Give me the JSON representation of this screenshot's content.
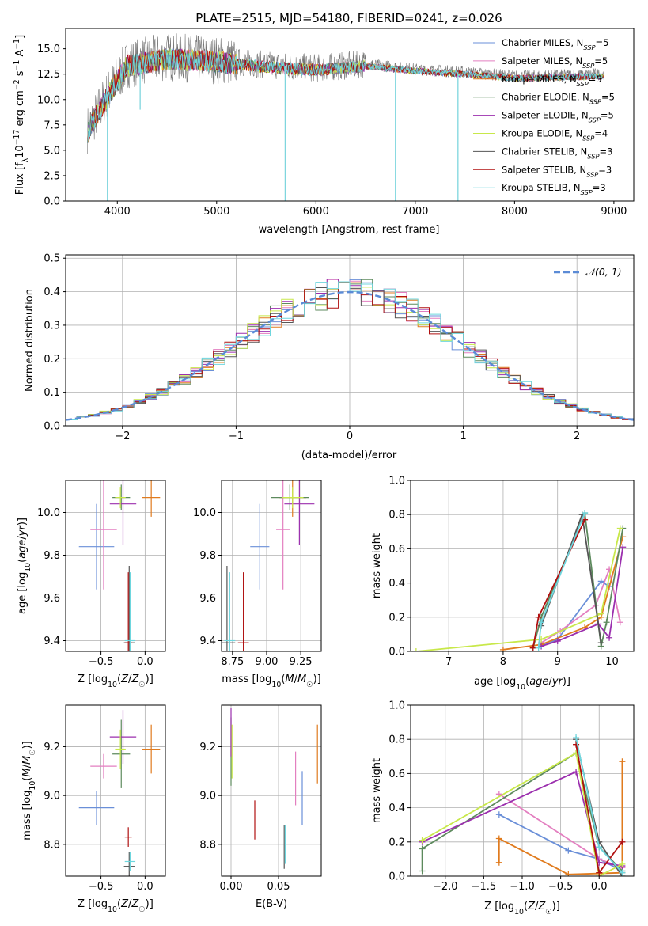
{
  "figure_title": "PLATE=2515, MJD=54180, FIBERID=0241, z=0.026",
  "series_styles": [
    {
      "name": "Chabrier MILES",
      "nssp": "5",
      "color": "#6a8fd8"
    },
    {
      "name": "Salpeter MILES",
      "nssp": "5",
      "color": "#e37fc0"
    },
    {
      "name": "Kroupa MILES",
      "nssp": "5",
      "color": "#e07b1e"
    },
    {
      "name": "Chabrier ELODIE",
      "nssp": "5",
      "color": "#5d8a5d"
    },
    {
      "name": "Salpeter ELODIE",
      "nssp": "5",
      "color": "#9b2fae"
    },
    {
      "name": "Kroupa ELODIE",
      "nssp": "4",
      "color": "#c8e84a"
    },
    {
      "name": "Chabrier STELIB",
      "nssp": "3",
      "color": "#555555"
    },
    {
      "name": "Salpeter STELIB",
      "nssp": "3",
      "color": "#b01010"
    },
    {
      "name": "Kroupa STELIB",
      "nssp": "3",
      "color": "#6ed6de"
    }
  ],
  "chart_data": [
    {
      "id": "spectrum",
      "type": "line",
      "title": "PLATE=2515, MJD=54180, FIBERID=0241, z=0.026",
      "xlabel": "wavelength [Angstrom, rest frame]",
      "ylabel": "Flux [f_λ 10^-17 erg cm^-2 s^-1 A^-1]",
      "xlim": [
        3480,
        9200
      ],
      "ylim": [
        0,
        17
      ],
      "xticks": [
        4000,
        5000,
        6000,
        7000,
        8000,
        9000
      ],
      "yticks": [
        0.0,
        2.5,
        5.0,
        7.5,
        10.0,
        12.5,
        15.0
      ],
      "continuum": {
        "x": [
          3700,
          3900,
          4100,
          4500,
          5000,
          5500,
          6000,
          6500,
          7000,
          7500,
          8000,
          8500,
          8900
        ],
        "y": [
          7.0,
          10.5,
          13.5,
          14.2,
          13.9,
          13.4,
          13.1,
          13.5,
          13.0,
          12.7,
          12.3,
          12.4,
          12.5
        ]
      },
      "dips": [
        {
          "x": 3900,
          "y": 0.0
        },
        {
          "x": 4230,
          "y": 9.0
        },
        {
          "x": 5690,
          "y": 0.0
        },
        {
          "x": 6800,
          "y": 0.0
        },
        {
          "x": 7430,
          "y": 0.0
        }
      ],
      "legend": "upper right"
    },
    {
      "id": "residuals",
      "type": "line",
      "xlabel": "(data-model)/error",
      "ylabel": "Normed distribution",
      "xlim": [
        -2.5,
        2.5
      ],
      "ylim": [
        0,
        0.51
      ],
      "xticks": [
        -2,
        -1,
        0,
        1,
        2
      ],
      "yticks": [
        0.0,
        0.1,
        0.2,
        0.3,
        0.4,
        0.5
      ],
      "grid": true,
      "reference_curve": {
        "name": "𝒩(0, 1)",
        "function": "normal pdf, mean 0, sigma 1",
        "color": "#5b8bd6"
      },
      "legend": "upper right"
    },
    {
      "id": "age_vs_Z",
      "type": "scatter",
      "xlabel": "Z [log10(Z/Z☉)]",
      "ylabel": "age [log10(age/yr)]",
      "xlim": [
        -0.9,
        0.23
      ],
      "ylim": [
        9.35,
        10.15
      ],
      "xticks": [
        -0.5,
        0.0
      ],
      "yticks": [
        9.4,
        9.6,
        9.8,
        10.0
      ],
      "grid": true,
      "points": [
        {
          "series": "Chabrier MILES",
          "x": -0.55,
          "xerr": 0.2,
          "y": 9.84,
          "yerr": 0.2
        },
        {
          "series": "Salpeter MILES",
          "x": -0.47,
          "xerr": 0.15,
          "y": 9.92,
          "yerr": 0.28
        },
        {
          "series": "Kroupa MILES",
          "x": 0.07,
          "xerr": 0.1,
          "y": 10.07,
          "yerr": 0.09
        },
        {
          "series": "Chabrier ELODIE",
          "x": -0.27,
          "xerr": 0.1,
          "y": 10.07,
          "yerr": 0.06
        },
        {
          "series": "Salpeter ELODIE",
          "x": -0.25,
          "xerr": 0.15,
          "y": 10.04,
          "yerr": 0.19
        },
        {
          "series": "Kroupa ELODIE",
          "x": -0.28,
          "xerr": 0.06,
          "y": 10.07,
          "yerr": 0.05
        },
        {
          "series": "Chabrier STELIB",
          "x": -0.18,
          "xerr": 0.06,
          "y": 9.39,
          "yerr": 0.36
        },
        {
          "series": "Salpeter STELIB",
          "x": -0.19,
          "xerr": 0.04,
          "y": 9.39,
          "yerr": 0.33
        },
        {
          "series": "Kroupa STELIB",
          "x": -0.17,
          "xerr": 0.06,
          "y": 9.4,
          "yerr": 0.32
        }
      ]
    },
    {
      "id": "age_vs_mass",
      "type": "scatter",
      "xlabel": "mass [log10(M/M☉)]",
      "xlim": [
        8.67,
        9.4
      ],
      "ylim": [
        9.35,
        10.15
      ],
      "xticks": [
        8.75,
        9.0,
        9.25
      ],
      "yticks": [
        9.4,
        9.6,
        9.8,
        10.0
      ],
      "grid": true,
      "points": [
        {
          "series": "Chabrier MILES",
          "x": 8.95,
          "xerr": 0.07,
          "y": 9.84,
          "yerr": 0.2
        },
        {
          "series": "Salpeter MILES",
          "x": 9.12,
          "xerr": 0.05,
          "y": 9.92,
          "yerr": 0.28
        },
        {
          "series": "Kroupa MILES",
          "x": 9.19,
          "xerr": 0.1,
          "y": 10.07,
          "yerr": 0.09
        },
        {
          "series": "Chabrier ELODIE",
          "x": 9.17,
          "xerr": 0.14,
          "y": 10.07,
          "yerr": 0.06
        },
        {
          "series": "Salpeter ELODIE",
          "x": 9.24,
          "xerr": 0.11,
          "y": 10.04,
          "yerr": 0.19
        },
        {
          "series": "Kroupa ELODIE",
          "x": 9.19,
          "xerr": 0.08,
          "y": 10.07,
          "yerr": 0.05
        },
        {
          "series": "Chabrier STELIB",
          "x": 8.71,
          "xerr": 0.06,
          "y": 9.39,
          "yerr": 0.36
        },
        {
          "series": "Salpeter STELIB",
          "x": 8.83,
          "xerr": 0.04,
          "y": 9.39,
          "yerr": 0.33
        },
        {
          "series": "Kroupa STELIB",
          "x": 8.73,
          "xerr": 0.04,
          "y": 9.4,
          "yerr": 0.32
        }
      ]
    },
    {
      "id": "mass_vs_Z",
      "type": "scatter",
      "xlabel": "Z [log10(Z/Z☉)]",
      "ylabel": "mass [log10(M/M☉)]",
      "xlim": [
        -0.9,
        0.23
      ],
      "ylim": [
        8.67,
        9.37
      ],
      "xticks": [
        -0.5,
        0.0
      ],
      "yticks": [
        8.8,
        9.0,
        9.2
      ],
      "grid": true,
      "points": [
        {
          "series": "Chabrier MILES",
          "x": -0.55,
          "xerr": 0.2,
          "y": 8.95,
          "yerr": 0.07
        },
        {
          "series": "Salpeter MILES",
          "x": -0.47,
          "xerr": 0.15,
          "y": 9.12,
          "yerr": 0.05
        },
        {
          "series": "Kroupa MILES",
          "x": 0.07,
          "xerr": 0.1,
          "y": 9.19,
          "yerr": 0.1
        },
        {
          "series": "Chabrier ELODIE",
          "x": -0.27,
          "xerr": 0.1,
          "y": 9.17,
          "yerr": 0.14
        },
        {
          "series": "Salpeter ELODIE",
          "x": -0.25,
          "xerr": 0.15,
          "y": 9.24,
          "yerr": 0.11
        },
        {
          "series": "Kroupa ELODIE",
          "x": -0.28,
          "xerr": 0.06,
          "y": 9.19,
          "yerr": 0.08
        },
        {
          "series": "Chabrier STELIB",
          "x": -0.18,
          "xerr": 0.06,
          "y": 8.71,
          "yerr": 0.06
        },
        {
          "series": "Salpeter STELIB",
          "x": -0.19,
          "xerr": 0.04,
          "y": 8.83,
          "yerr": 0.04
        },
        {
          "series": "Kroupa STELIB",
          "x": -0.17,
          "xerr": 0.06,
          "y": 8.73,
          "yerr": 0.04
        }
      ]
    },
    {
      "id": "mass_vs_EBV",
      "type": "scatter",
      "xlabel": "E(B-V)",
      "xlim": [
        -0.01,
        0.095
      ],
      "ylim": [
        8.67,
        9.37
      ],
      "xticks": [
        0.0,
        0.05
      ],
      "yticks": [
        8.8,
        9.0,
        9.2
      ],
      "grid": true,
      "points": [
        {
          "series": "Chabrier MILES",
          "x": 0.075,
          "y": 8.99,
          "yerr": 0.11
        },
        {
          "series": "Salpeter MILES",
          "x": 0.068,
          "y": 9.07,
          "yerr": 0.11
        },
        {
          "series": "Kroupa MILES",
          "x": 0.091,
          "y": 9.17,
          "yerr": 0.12
        },
        {
          "series": "Chabrier ELODIE",
          "x": 0.0,
          "y": 9.18,
          "yerr": 0.14
        },
        {
          "series": "Salpeter ELODIE",
          "x": 0.0,
          "y": 9.26,
          "yerr": 0.1
        },
        {
          "series": "Kroupa ELODIE",
          "x": 0.001,
          "y": 9.18,
          "yerr": 0.11
        },
        {
          "series": "Chabrier STELIB",
          "x": 0.056,
          "y": 8.79,
          "yerr": 0.09
        },
        {
          "series": "Salpeter STELIB",
          "x": 0.025,
          "y": 8.9,
          "yerr": 0.08
        },
        {
          "series": "Kroupa STELIB",
          "x": 0.057,
          "y": 8.8,
          "yerr": 0.08
        }
      ]
    },
    {
      "id": "weight_vs_age",
      "type": "line",
      "xlabel": "age [log10(age/yr)]",
      "ylabel": "mass weight",
      "xlim": [
        6.3,
        10.4
      ],
      "ylim": [
        0,
        1.0
      ],
      "xticks": [
        7,
        8,
        9,
        10
      ],
      "yticks": [
        0.0,
        0.2,
        0.4,
        0.6,
        0.8,
        1.0
      ],
      "grid": true,
      "series": [
        {
          "name": "Chabrier MILES",
          "x": [
            8.7,
            9.0,
            9.8,
            9.95
          ],
          "y": [
            0.03,
            0.07,
            0.41,
            0.38
          ]
        },
        {
          "name": "Salpeter MILES",
          "x": [
            8.7,
            9.05,
            9.7,
            9.95,
            10.15
          ],
          "y": [
            0.05,
            0.12,
            0.27,
            0.48,
            0.17
          ]
        },
        {
          "name": "Kroupa MILES",
          "x": [
            8.0,
            8.7,
            9.5,
            9.8,
            10.2
          ],
          "y": [
            0.01,
            0.04,
            0.14,
            0.2,
            0.67
          ]
        },
        {
          "name": "Chabrier ELODIE",
          "x": [
            8.55,
            8.7,
            9.5,
            9.8,
            9.9,
            10.2
          ],
          "y": [
            0.02,
            0.2,
            0.81,
            0.03,
            0.17,
            0.72
          ]
        },
        {
          "name": "Salpeter ELODIE",
          "x": [
            8.7,
            9.0,
            9.75,
            9.95,
            10.2
          ],
          "y": [
            0.03,
            0.06,
            0.16,
            0.08,
            0.61
          ]
        },
        {
          "name": "Kroupa ELODIE",
          "x": [
            6.4,
            8.7,
            9.8,
            10.15
          ],
          "y": [
            0.0,
            0.07,
            0.22,
            0.72
          ]
        },
        {
          "name": "Chabrier STELIB",
          "x": [
            8.7,
            9.45,
            9.8
          ],
          "y": [
            0.15,
            0.8,
            0.05
          ]
        },
        {
          "name": "Salpeter STELIB",
          "x": [
            8.55,
            8.65,
            9.5
          ],
          "y": [
            0.02,
            0.2,
            0.77
          ]
        },
        {
          "name": "Kroupa STELIB",
          "x": [
            8.65,
            8.7,
            9.5
          ],
          "y": [
            0.02,
            0.17,
            0.81
          ]
        }
      ]
    },
    {
      "id": "weight_vs_Z",
      "type": "line",
      "xlabel": "Z [log10(Z/Z☉)]",
      "ylabel": "mass weight",
      "xlim": [
        -2.45,
        0.45
      ],
      "ylim": [
        0,
        1.0
      ],
      "xticks": [
        -2.0,
        -1.5,
        -1.0,
        -0.5,
        0.0
      ],
      "yticks": [
        0.0,
        0.2,
        0.4,
        0.6,
        0.8,
        1.0
      ],
      "grid": true,
      "series": [
        {
          "name": "Chabrier MILES",
          "x": [
            -1.3,
            -0.4,
            0.0,
            0.3
          ],
          "y": [
            0.36,
            0.15,
            0.1,
            0.03
          ]
        },
        {
          "name": "Salpeter MILES",
          "x": [
            -1.3,
            0.0,
            0.3
          ],
          "y": [
            0.48,
            0.1,
            0.05
          ]
        },
        {
          "name": "Kroupa MILES",
          "x": [
            -1.3,
            -1.3,
            -0.4,
            0.3,
            0.3
          ],
          "y": [
            0.08,
            0.22,
            0.01,
            0.02,
            0.67
          ]
        },
        {
          "name": "Chabrier ELODIE",
          "x": [
            -2.3,
            -2.3,
            -0.3,
            0.0,
            0.3
          ],
          "y": [
            0.03,
            0.16,
            0.72,
            0.17,
            0.03
          ]
        },
        {
          "name": "Salpeter ELODIE",
          "x": [
            -2.3,
            -0.3,
            0.0,
            0.3
          ],
          "y": [
            0.2,
            0.61,
            0.08,
            0.06
          ]
        },
        {
          "name": "Kroupa ELODIE",
          "x": [
            -2.3,
            -0.3,
            0.0,
            0.3
          ],
          "y": [
            0.21,
            0.72,
            0.0,
            0.07
          ]
        },
        {
          "name": "Chabrier STELIB",
          "x": [
            -0.3,
            0.0,
            0.3
          ],
          "y": [
            0.8,
            0.2,
            0.0
          ]
        },
        {
          "name": "Salpeter STELIB",
          "x": [
            -0.3,
            0.0,
            0.3
          ],
          "y": [
            0.77,
            0.02,
            0.2
          ]
        },
        {
          "name": "Kroupa STELIB",
          "x": [
            -0.3,
            0.0,
            0.3
          ],
          "y": [
            0.81,
            0.17,
            0.02
          ]
        }
      ]
    }
  ]
}
